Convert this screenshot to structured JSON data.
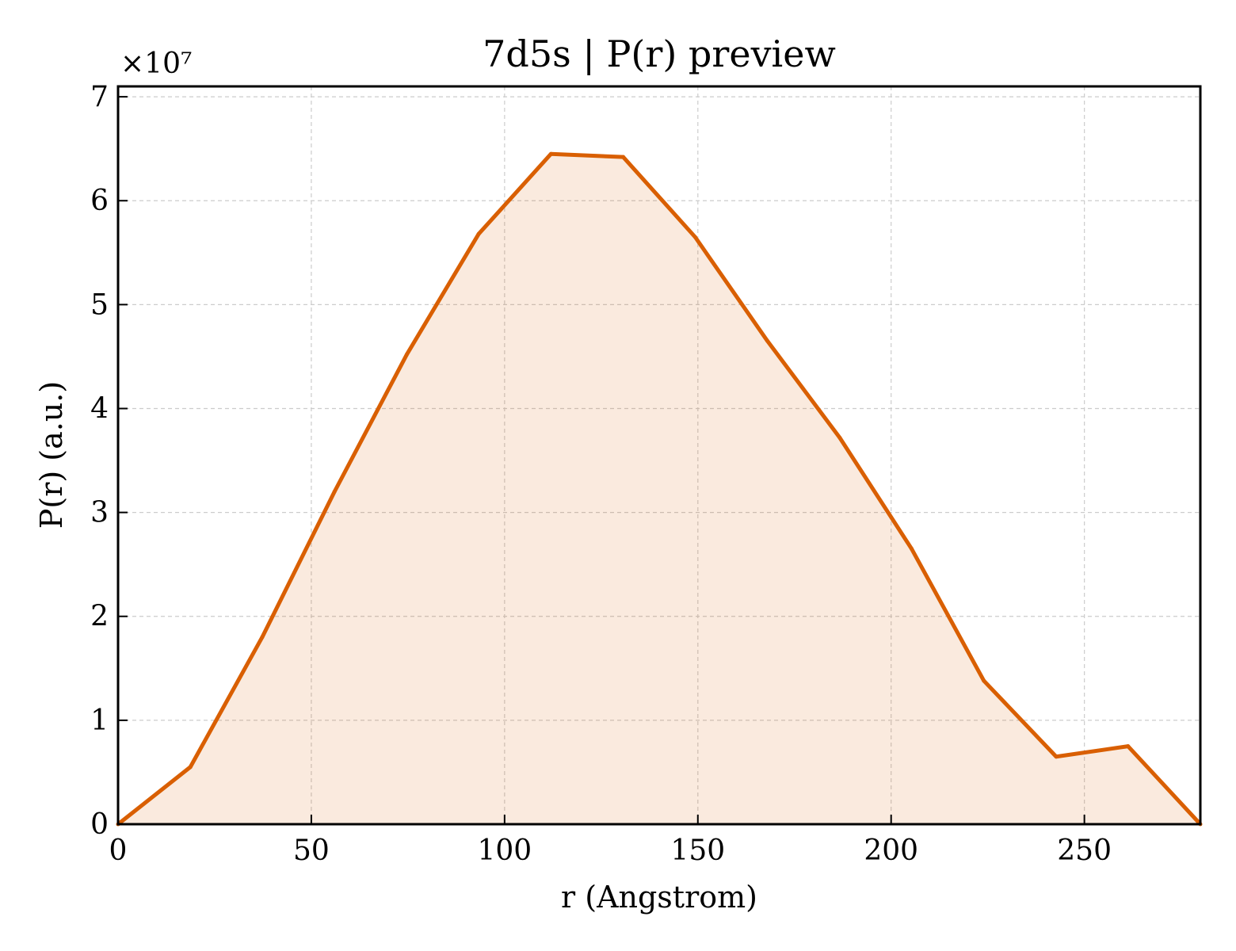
{
  "chart_data": {
    "type": "area",
    "title": "7d5s | P(r) preview",
    "xlabel": "r (Angstrom)",
    "ylabel": "P(r) (a.u.)",
    "y_offset_label": "×10⁷",
    "y_scale": 10000000,
    "xlim": [
      0,
      280
    ],
    "ylim": [
      0,
      7.1
    ],
    "xticks": [
      0,
      50,
      100,
      150,
      200,
      250
    ],
    "xtick_labels": [
      "0",
      "50",
      "100",
      "150",
      "200",
      "250"
    ],
    "yticks": [
      0,
      1,
      2,
      3,
      4,
      5,
      6,
      7
    ],
    "ytick_labels": [
      "0",
      "1",
      "2",
      "3",
      "4",
      "5",
      "6",
      "7"
    ],
    "grid": true,
    "series": [
      {
        "x": [
          0,
          18.7,
          37.3,
          56.0,
          74.7,
          93.3,
          112.0,
          130.7,
          149.3,
          168.0,
          186.7,
          205.3,
          224.0,
          242.7,
          261.3,
          280.0
        ],
        "y": [
          0,
          0.55,
          1.8,
          3.2,
          4.52,
          5.68,
          6.45,
          6.42,
          5.65,
          4.65,
          3.72,
          2.65,
          1.38,
          0.65,
          0.75,
          0
        ],
        "color": "#d95f02",
        "fill_color": "#d95f02",
        "fill_opacity": 0.13
      }
    ]
  }
}
